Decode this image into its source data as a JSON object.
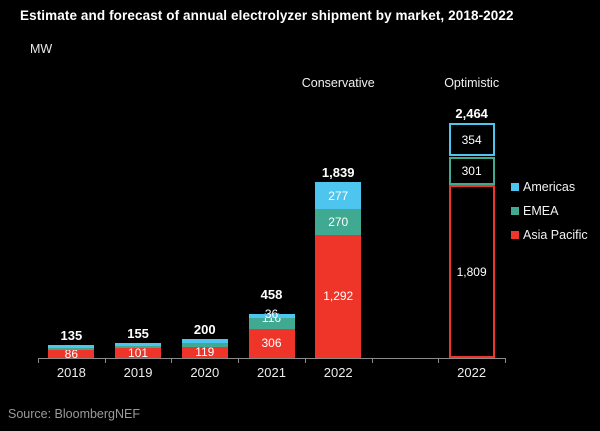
{
  "header": {
    "title": "Estimate and forecast of annual electrolyzer shipment by market, 2018-2022",
    "unit": "MW"
  },
  "legend": {
    "items": [
      {
        "label": "Americas",
        "color": "#4dc5ee"
      },
      {
        "label": "EMEA",
        "color": "#3fa992"
      },
      {
        "label": "Asia Pacific",
        "color": "#ef352a"
      }
    ]
  },
  "chart_data": {
    "type": "bar",
    "stacked": true,
    "unit": "MW",
    "title": "Estimate and forecast of annual electrolyzer shipment by market, 2018-2022",
    "categories": [
      "2018",
      "2019",
      "2020",
      "2021",
      "2022",
      "2022"
    ],
    "num_slots": 7,
    "slots": [
      0,
      1,
      2,
      3,
      4,
      6
    ],
    "bar_styles": [
      "filled",
      "filled",
      "filled",
      "filled",
      "filled",
      "outlined"
    ],
    "series": [
      {
        "name": "Asia Pacific",
        "color": "#ef352a",
        "values": [
          86,
          101,
          119,
          306,
          1292,
          1809
        ]
      },
      {
        "name": "EMEA",
        "color": "#3fa992",
        "values": [
          21,
          23,
          36,
          116,
          270,
          301
        ]
      },
      {
        "name": "Americas",
        "color": "#4dc5ee",
        "values": [
          28,
          31,
          45,
          36,
          277,
          354
        ]
      }
    ],
    "segment_labels_shown": [
      [
        true,
        false,
        false
      ],
      [
        true,
        false,
        false
      ],
      [
        true,
        false,
        false
      ],
      [
        true,
        true,
        true
      ],
      [
        true,
        true,
        true
      ],
      [
        true,
        true,
        true
      ]
    ],
    "totals": [
      135,
      155,
      200,
      458,
      1839,
      2464
    ],
    "scenario_labels": [
      {
        "text": "Conservative",
        "slot": 4
      },
      {
        "text": "Optimistic",
        "slot": 6
      }
    ],
    "ylim": [
      0,
      2464
    ],
    "grid": false,
    "legend_position": "right"
  },
  "footer": {
    "source": "Source: BloombergNEF"
  },
  "colors": {
    "background": "#000000",
    "title_text": "#ffffff",
    "axis": "#8a8a8a",
    "source_text": "#9a9a9a"
  }
}
